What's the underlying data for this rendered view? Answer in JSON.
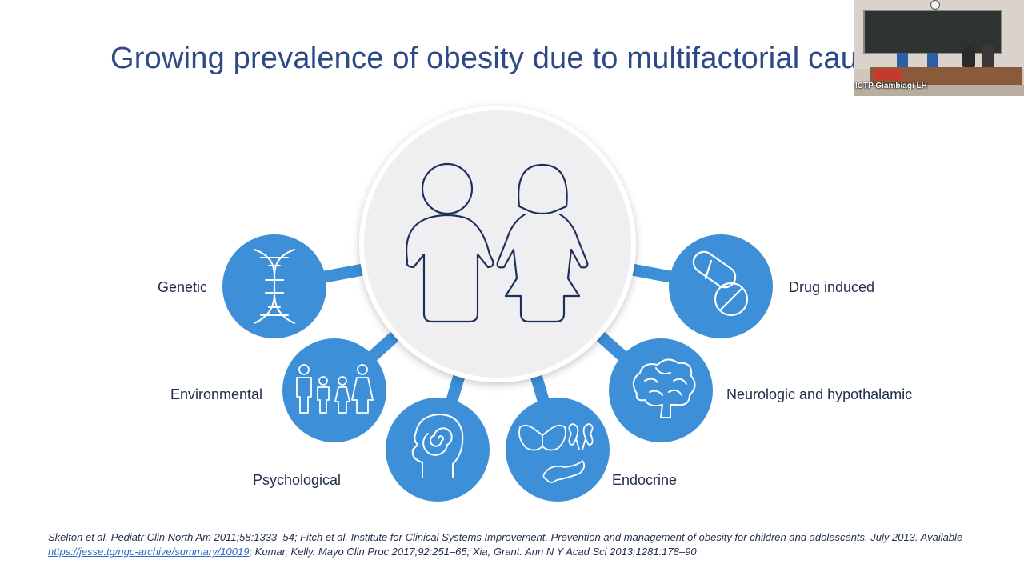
{
  "slide": {
    "title": "Growing prevalence of obesity due to multifactorial cau",
    "center_icon": "children-icon",
    "factors": [
      {
        "label": "Genetic",
        "icon": "dna-icon"
      },
      {
        "label": "Environmental",
        "icon": "family-icon"
      },
      {
        "label": "Psychological",
        "icon": "head-spiral-icon"
      },
      {
        "label": "Endocrine",
        "icon": "organs-icon"
      },
      {
        "label": "Neurologic and hypothalamic",
        "icon": "brain-icon"
      },
      {
        "label": "Drug induced",
        "icon": "pills-icon"
      }
    ],
    "references": {
      "part1": "Skelton et al. Pediatr Clin North Am 2011;58:1333–54; Fitch et al. Institute for Clinical Systems Improvement. Prevention and management of obesity for children and adolescents. July 2013. Available ",
      "link": "https://jesse.tg/ngc-archive/summary/10019",
      "part2": "; Kumar, Kelly. Mayo Clin Proc 2017;92:251–65; Xia, Grant. Ann N Y Acad Sci 2013;1281:178–90"
    }
  },
  "webcam": {
    "label": "ICTP Giambiagi LH"
  },
  "colors": {
    "title": "#2d4a86",
    "circle_fill": "#3d8fd8",
    "spoke": "#3d8fd8",
    "center_fill": "#efeff1",
    "icon_line": "#1f2f5c"
  }
}
